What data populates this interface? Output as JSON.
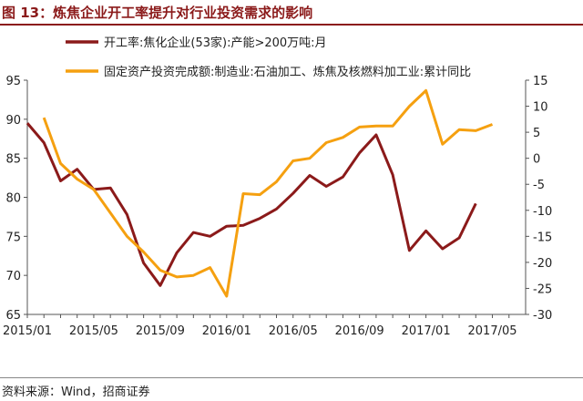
{
  "title": "图 13：炼焦企业开工率提升对行业投资需求的影响",
  "source": "资料来源：Wind，招商证券",
  "chart_data": {
    "type": "line",
    "x": [
      "2015/01",
      "2015/02",
      "2015/03",
      "2015/04",
      "2015/05",
      "2015/06",
      "2015/07",
      "2015/08",
      "2015/09",
      "2015/10",
      "2015/11",
      "2015/12",
      "2016/01",
      "2016/02",
      "2016/03",
      "2016/04",
      "2016/05",
      "2016/06",
      "2016/07",
      "2016/08",
      "2016/09",
      "2016/10",
      "2016/11",
      "2016/12",
      "2017/01",
      "2017/02",
      "2017/03",
      "2017/04",
      "2017/05",
      "2017/06"
    ],
    "xticks": [
      "2015/01",
      "2015/05",
      "2015/09",
      "2016/01",
      "2016/05",
      "2016/09",
      "2017/01",
      "2017/05"
    ],
    "series": [
      {
        "name": "开工率:焦化企业(53家):产能>200万吨:月",
        "axis": "left",
        "color": "#8b1a1a",
        "values": [
          89.5,
          87.0,
          82.1,
          83.6,
          81.0,
          81.2,
          77.8,
          71.6,
          68.7,
          72.9,
          75.5,
          75.0,
          76.3,
          76.4,
          77.3,
          78.5,
          80.5,
          82.8,
          81.4,
          82.6,
          85.7,
          88.0,
          82.9,
          73.2,
          75.7,
          73.4,
          74.8,
          79.2,
          null,
          null
        ]
      },
      {
        "name": "固定资产投资完成额:制造业:石油加工、炼焦及核燃料加工业:累计同比",
        "axis": "right",
        "color": "#f5a010",
        "values": [
          null,
          7.8,
          -1.0,
          -4.0,
          -6.0,
          -10.5,
          -15.0,
          -18.0,
          -21.5,
          -22.8,
          -22.5,
          -21.0,
          -26.5,
          -6.8,
          -7.0,
          -4.5,
          -0.5,
          0.0,
          3.0,
          4.0,
          6.0,
          6.2,
          6.2,
          10.0,
          13.0,
          2.7,
          5.5,
          5.3,
          6.5,
          null
        ]
      }
    ],
    "y_left": {
      "ylim": [
        65,
        95
      ],
      "ticks": [
        65,
        70,
        75,
        80,
        85,
        90,
        95
      ]
    },
    "y_right": {
      "ylim": [
        -30,
        15
      ],
      "ticks": [
        -30,
        -25,
        -20,
        -15,
        -10,
        -5,
        0,
        5,
        10,
        15
      ]
    },
    "grid": false,
    "legend": "top"
  }
}
